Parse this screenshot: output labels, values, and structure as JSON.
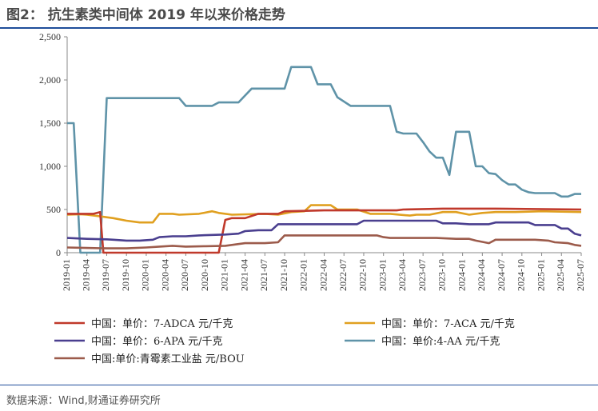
{
  "header": {
    "title": "图2：  抗生素类中间体 2019 年以来价格走势"
  },
  "footer": {
    "source": "数据来源：Wind,财通证券研究所"
  },
  "chart_data": {
    "type": "line",
    "title": "",
    "xlabel": "",
    "ylabel": "",
    "ylim": [
      0,
      2500
    ],
    "yticks": [
      "0",
      "500",
      "1,000",
      "1,500",
      "2,000",
      "2,500"
    ],
    "grid": false,
    "legend_position": "bottom",
    "xticks": [
      "2019-01",
      "2019-04",
      "2019-07",
      "2019-10",
      "2020-01",
      "2020-04",
      "2020-07",
      "2020-10",
      "2021-01",
      "2021-04",
      "2021-07",
      "2021-10",
      "2022-01",
      "2022-04",
      "2022-07",
      "2022-10",
      "2023-01",
      "2023-04",
      "2023-07",
      "2023-10",
      "2024-01",
      "2024-04",
      "2024-07",
      "2024-10",
      "2025-01",
      "2025-04",
      "2025-07"
    ],
    "series": [
      {
        "name": "中国：单价：7-ADCA 元/千克",
        "color": "#c0392b",
        "points": [
          [
            "2019-01",
            450
          ],
          [
            "2019-05",
            450
          ],
          [
            "2019-06",
            470
          ],
          [
            "2019-06.5",
            0
          ],
          [
            "2020-12",
            0
          ],
          [
            "2021-01",
            380
          ],
          [
            "2021-02",
            400
          ],
          [
            "2021-04",
            400
          ],
          [
            "2021-06",
            450
          ],
          [
            "2021-09",
            450
          ],
          [
            "2021-10",
            480
          ],
          [
            "2022-04",
            490
          ],
          [
            "2023-03",
            490
          ],
          [
            "2023-04",
            500
          ],
          [
            "2023-10",
            510
          ],
          [
            "2024-06",
            510
          ],
          [
            "2025-07",
            500
          ]
        ]
      },
      {
        "name": "中国：单价：7-ACA 元/千克",
        "color": "#e0a020",
        "points": [
          [
            "2019-01",
            440
          ],
          [
            "2019-03",
            445
          ],
          [
            "2019-04",
            440
          ],
          [
            "2019-06",
            420
          ],
          [
            "2019-08",
            400
          ],
          [
            "2019-10",
            370
          ],
          [
            "2019-12",
            350
          ],
          [
            "2020-02",
            350
          ],
          [
            "2020-03",
            450
          ],
          [
            "2020-05",
            450
          ],
          [
            "2020-06",
            440
          ],
          [
            "2020-09",
            450
          ],
          [
            "2020-11",
            480
          ],
          [
            "2020-12",
            460
          ],
          [
            "2021-02",
            440
          ],
          [
            "2021-07",
            450
          ],
          [
            "2021-09",
            440
          ],
          [
            "2021-11",
            470
          ],
          [
            "2022-01",
            480
          ],
          [
            "2022-02",
            550
          ],
          [
            "2022-05",
            550
          ],
          [
            "2022-06",
            500
          ],
          [
            "2022-09",
            500
          ],
          [
            "2022-11",
            450
          ],
          [
            "2023-02",
            450
          ],
          [
            "2023-05",
            430
          ],
          [
            "2023-06",
            440
          ],
          [
            "2023-08",
            440
          ],
          [
            "2023-10",
            470
          ],
          [
            "2023-12",
            470
          ],
          [
            "2024-02",
            440
          ],
          [
            "2024-04",
            460
          ],
          [
            "2024-06",
            470
          ],
          [
            "2024-09",
            470
          ],
          [
            "2025-01",
            480
          ],
          [
            "2025-07",
            470
          ]
        ]
      },
      {
        "name": "中国：单价：6-APA 元/千克",
        "color": "#4a3f8f",
        "points": [
          [
            "2019-01",
            170
          ],
          [
            "2019-04",
            160
          ],
          [
            "2019-07",
            155
          ],
          [
            "2019-08",
            150
          ],
          [
            "2019-10",
            140
          ],
          [
            "2019-12",
            140
          ],
          [
            "2020-02",
            150
          ],
          [
            "2020-03",
            180
          ],
          [
            "2020-05",
            190
          ],
          [
            "2020-07",
            190
          ],
          [
            "2020-09",
            200
          ],
          [
            "2021-01",
            210
          ],
          [
            "2021-03",
            220
          ],
          [
            "2021-04",
            250
          ],
          [
            "2021-06",
            260
          ],
          [
            "2021-08",
            260
          ],
          [
            "2021-09",
            330
          ],
          [
            "2022-09",
            330
          ],
          [
            "2022-10",
            370
          ],
          [
            "2023-09",
            370
          ],
          [
            "2023-10",
            340
          ],
          [
            "2023-12",
            340
          ],
          [
            "2024-02",
            330
          ],
          [
            "2024-05",
            330
          ],
          [
            "2024-06",
            350
          ],
          [
            "2024-11",
            350
          ],
          [
            "2024-12",
            320
          ],
          [
            "2025-03",
            320
          ],
          [
            "2025-04",
            280
          ],
          [
            "2025-05",
            280
          ],
          [
            "2025-06",
            220
          ],
          [
            "2025-07",
            200
          ]
        ]
      },
      {
        "name": "中国：单价:4-AA 元/千克",
        "color": "#5f93a8",
        "points": [
          [
            "2019-01",
            1500
          ],
          [
            "2019-02",
            1500
          ],
          [
            "2019-03",
            0
          ],
          [
            "2019-06",
            0
          ],
          [
            "2019-07",
            1790
          ],
          [
            "2020-06",
            1790
          ],
          [
            "2020-07",
            1700
          ],
          [
            "2020-11",
            1700
          ],
          [
            "2020-12",
            1740
          ],
          [
            "2021-03",
            1740
          ],
          [
            "2021-05",
            1900
          ],
          [
            "2021-10",
            1900
          ],
          [
            "2021-11",
            2150
          ],
          [
            "2022-02",
            2150
          ],
          [
            "2022-03",
            1950
          ],
          [
            "2022-05",
            1950
          ],
          [
            "2022-06",
            1800
          ],
          [
            "2022-08",
            1700
          ],
          [
            "2022-12",
            1700
          ],
          [
            "2023-02",
            1700
          ],
          [
            "2023-03",
            1400
          ],
          [
            "2023-04",
            1380
          ],
          [
            "2023-06",
            1380
          ],
          [
            "2023-07",
            1280
          ],
          [
            "2023-08",
            1170
          ],
          [
            "2023-09",
            1100
          ],
          [
            "2023-10",
            1100
          ],
          [
            "2023-11",
            900
          ],
          [
            "2023-12",
            1400
          ],
          [
            "2024-02",
            1400
          ],
          [
            "2024-03",
            1000
          ],
          [
            "2024-04",
            1000
          ],
          [
            "2024-05",
            920
          ],
          [
            "2024-06",
            910
          ],
          [
            "2024-07",
            840
          ],
          [
            "2024-08",
            790
          ],
          [
            "2024-09",
            790
          ],
          [
            "2024-10",
            730
          ],
          [
            "2024-11",
            700
          ],
          [
            "2024-12",
            690
          ],
          [
            "2025-03",
            690
          ],
          [
            "2025-04",
            650
          ],
          [
            "2025-05",
            650
          ],
          [
            "2025-06",
            680
          ],
          [
            "2025-07",
            680
          ]
        ]
      },
      {
        "name": "中国:单价:青霉素工业盐 元/BOU",
        "color": "#9c5b4b",
        "points": [
          [
            "2019-01",
            60
          ],
          [
            "2019-04",
            55
          ],
          [
            "2019-07",
            50
          ],
          [
            "2019-10",
            50
          ],
          [
            "2020-01",
            60
          ],
          [
            "2020-03",
            70
          ],
          [
            "2020-05",
            80
          ],
          [
            "2020-07",
            70
          ],
          [
            "2020-10",
            75
          ],
          [
            "2021-01",
            80
          ],
          [
            "2021-03",
            100
          ],
          [
            "2021-04",
            110
          ],
          [
            "2021-07",
            110
          ],
          [
            "2021-09",
            120
          ],
          [
            "2021-10",
            200
          ],
          [
            "2022-12",
            200
          ],
          [
            "2023-01",
            180
          ],
          [
            "2023-02",
            170
          ],
          [
            "2023-09",
            170
          ],
          [
            "2023-12",
            160
          ],
          [
            "2024-02",
            160
          ],
          [
            "2024-03",
            140
          ],
          [
            "2024-05",
            110
          ],
          [
            "2024-06",
            150
          ],
          [
            "2024-12",
            150
          ],
          [
            "2025-02",
            140
          ],
          [
            "2025-03",
            120
          ],
          [
            "2025-05",
            110
          ],
          [
            "2025-06",
            90
          ],
          [
            "2025-07",
            80
          ]
        ]
      }
    ]
  }
}
